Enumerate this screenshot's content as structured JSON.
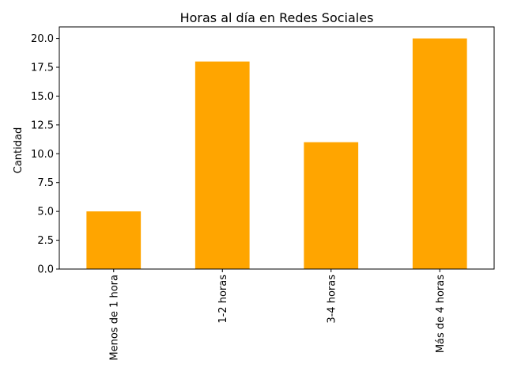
{
  "chart_data": {
    "type": "bar",
    "title": "Horas al día en Redes Sociales",
    "xlabel": "",
    "ylabel": "Cantidad",
    "categories": [
      "Menos de 1 hora",
      "1-2 horas",
      "3-4 horas",
      "Más de 4 horas"
    ],
    "values": [
      5,
      18,
      11,
      20
    ],
    "ylim": [
      0,
      21
    ],
    "yticks": [
      "0.0",
      "2.5",
      "5.0",
      "7.5",
      "10.0",
      "12.5",
      "15.0",
      "17.5",
      "20.0"
    ],
    "grid": false,
    "legend": "none",
    "bar_color": "#FFA500"
  }
}
